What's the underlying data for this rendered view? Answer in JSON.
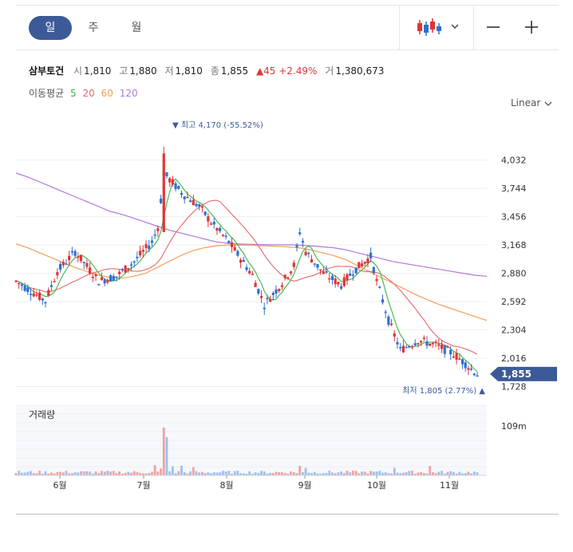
{
  "tabs": [
    {
      "label": "일",
      "active": true
    },
    {
      "label": "주",
      "active": false
    },
    {
      "label": "월",
      "active": false
    }
  ],
  "toolbar": {
    "candle_icon": "candlestick-chart-icon",
    "dropdown_icon": "chevron-down-icon",
    "zoom_out": "—",
    "zoom_in": "+"
  },
  "info": {
    "name": "삼부토건",
    "open_label": "시",
    "open": "1,810",
    "high_label": "고",
    "high": "1,880",
    "low_label": "저",
    "low": "1,810",
    "close_label": "종",
    "close": "1,855",
    "change": "▲45 +2.49%",
    "volume_label": "거",
    "volume": "1,380,673"
  },
  "ma_legend": {
    "label": "이동평균",
    "ma5": "5",
    "ma20": "20",
    "ma60": "60",
    "ma120": "120"
  },
  "scale_mode": "Linear",
  "colors": {
    "up": "#e03535",
    "down": "#2f6fd1",
    "ma5": "#3cb54a",
    "ma20": "#e8676a",
    "ma60": "#f0a05a",
    "ma120": "#b07ad8",
    "price_tag": "#3d5a98"
  },
  "chart_data": {
    "type": "candlestick",
    "y_ticks": [
      "4,032",
      "3,744",
      "3,456",
      "3,168",
      "2,880",
      "2,592",
      "2,304",
      "2,016",
      "1,728"
    ],
    "ylim": [
      1700,
      4200
    ],
    "x_labels": [
      "6월",
      "7월",
      "8월",
      "9월",
      "10월",
      "11월"
    ],
    "current_price_label": "1,855",
    "max_annotation": "▼ 최고 4,170 (-55.52%)",
    "min_annotation": "최저 1,805 (2.77%) ▲",
    "volume_title": "거래량",
    "volume_tick": "109m",
    "ma120": [
      3900,
      3860,
      3810,
      3760,
      3710,
      3660,
      3610,
      3560,
      3510,
      3480,
      3440,
      3400,
      3360,
      3320,
      3290,
      3260,
      3230,
      3200,
      3185,
      3178,
      3175,
      3172,
      3170,
      3170,
      3168,
      3160,
      3150,
      3140,
      3120,
      3090,
      3060,
      3030,
      3000,
      2980,
      2960,
      2940,
      2920,
      2900,
      2880,
      2860,
      2850
    ],
    "ma60": [
      3180,
      3140,
      3090,
      3040,
      2990,
      2940,
      2900,
      2860,
      2840,
      2830,
      2850,
      2880,
      2940,
      3000,
      3060,
      3110,
      3140,
      3160,
      3168,
      3168,
      3165,
      3160,
      3155,
      3150,
      3140,
      3120,
      3090,
      3060,
      3020,
      2960,
      2900,
      2840,
      2780,
      2720,
      2660,
      2610,
      2560,
      2520,
      2480,
      2440,
      2400
    ]
  }
}
